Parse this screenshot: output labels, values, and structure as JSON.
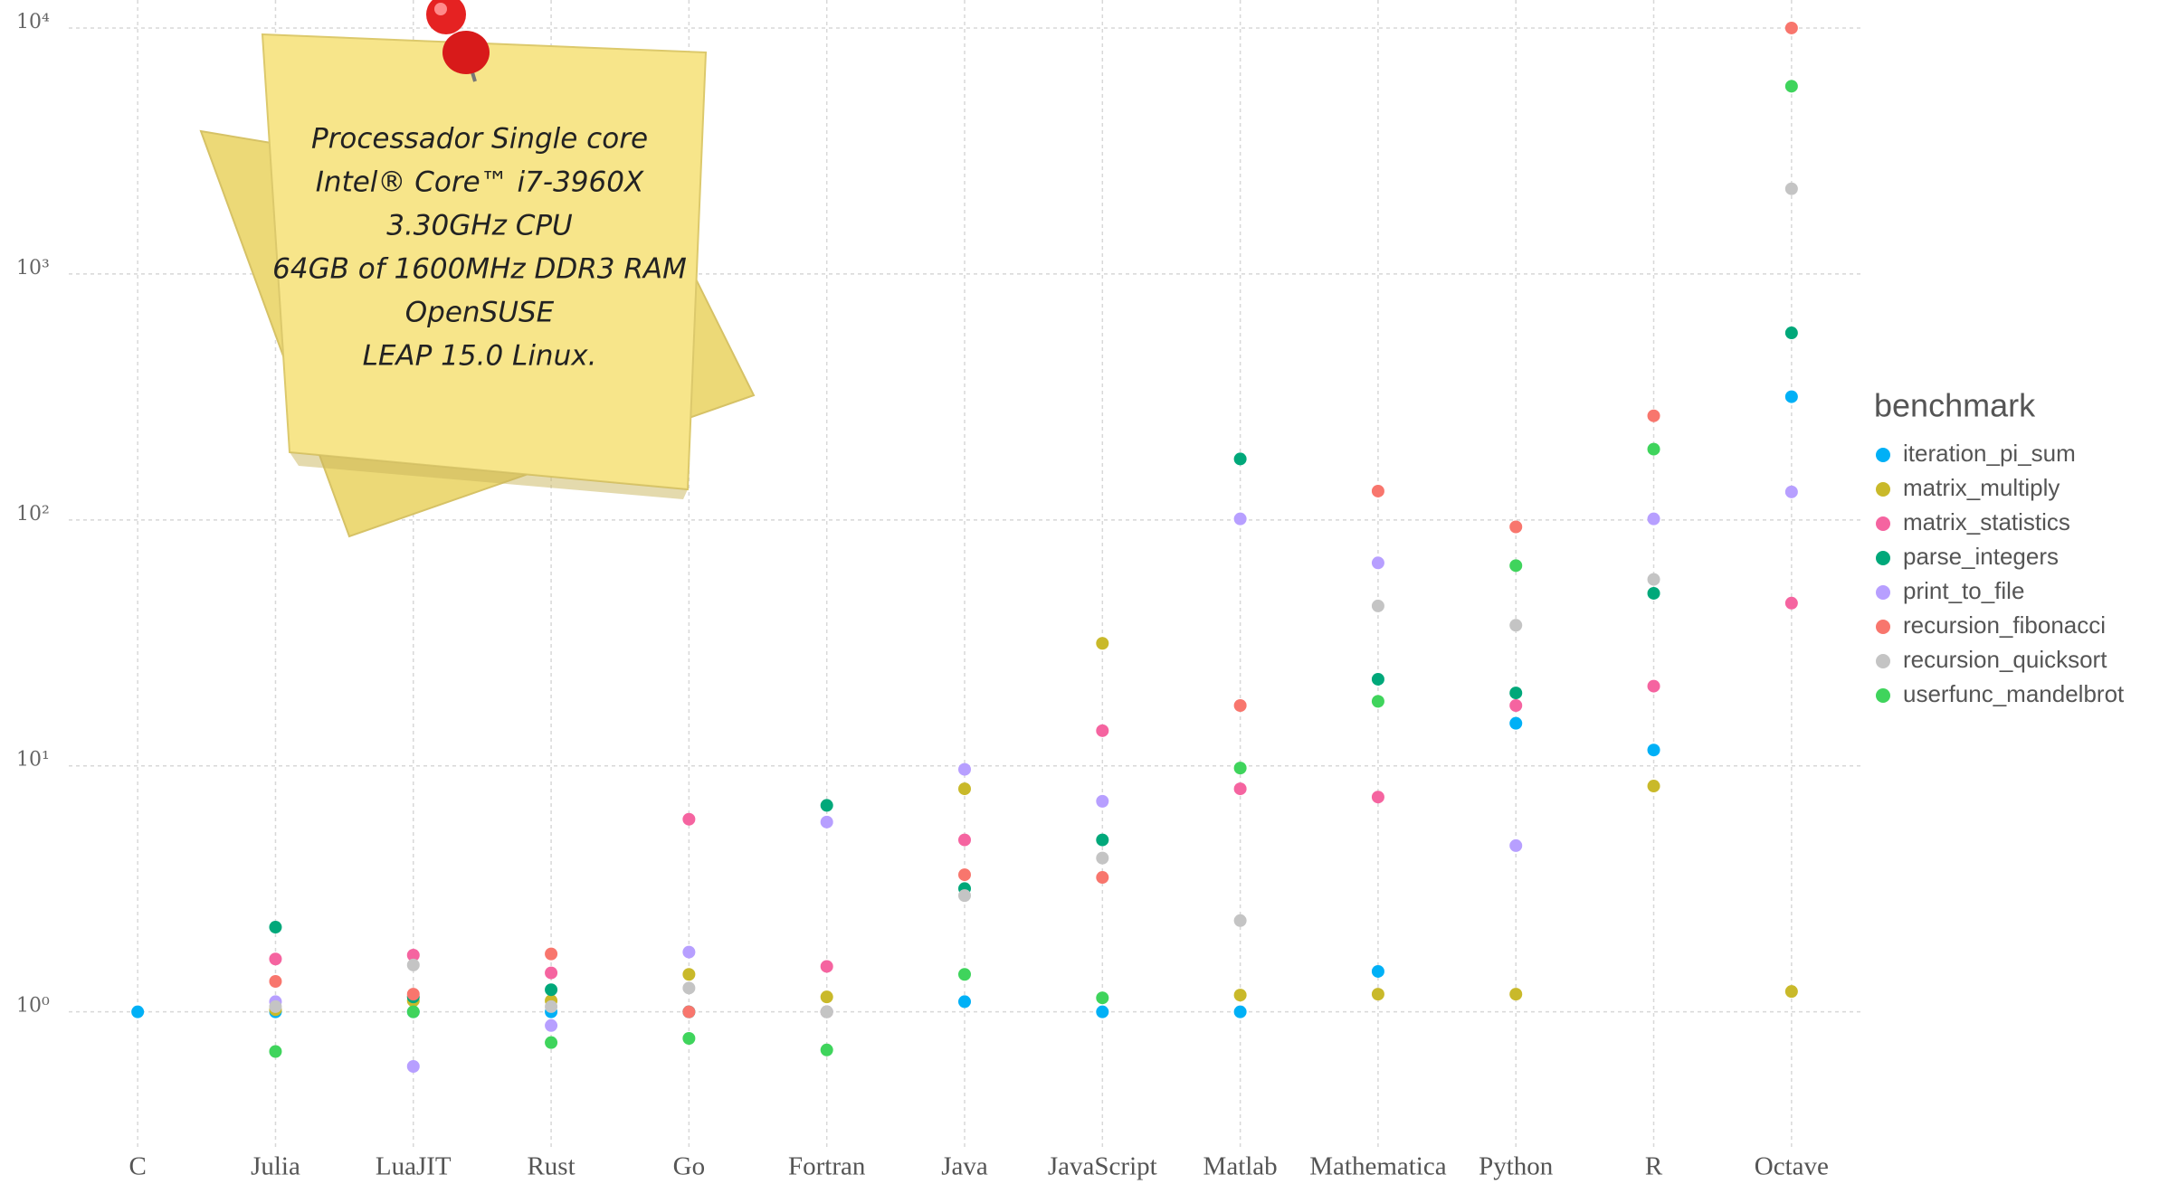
{
  "chart_data": {
    "type": "scatter",
    "log_y": true,
    "grid": true,
    "legend_position": "right",
    "legend_title": "benchmark",
    "annotations": [
      "Processador Single core",
      "Intel® Core™ i7-3960X",
      "3.30GHz CPU",
      "64GB of 1600MHz  DDR3 RAM",
      "OpenSUSE",
      "LEAP 15.0 Linux."
    ],
    "categories": [
      "C",
      "Julia",
      "LuaJIT",
      "Rust",
      "Go",
      "Fortran",
      "Java",
      "JavaScript",
      "Matlab",
      "Mathematica",
      "Python",
      "R",
      "Octave"
    ],
    "ylim": [
      0.28,
      13000
    ],
    "yticks": [
      {
        "value": 1,
        "label": "10⁰"
      },
      {
        "value": 10,
        "label": "10¹"
      },
      {
        "value": 100,
        "label": "10²"
      },
      {
        "value": 1000,
        "label": "10³"
      },
      {
        "value": 10000,
        "label": "10⁴"
      }
    ],
    "series": [
      {
        "name": "iteration_pi_sum",
        "color": "#00b0f6",
        "values": [
          1.0,
          1.0,
          1.0,
          1.0,
          1.0,
          1.0,
          1.1,
          1.0,
          1.0,
          1.46,
          14.9,
          11.6,
          317
        ]
      },
      {
        "name": "matrix_multiply",
        "color": "#c9b92a",
        "values": [
          null,
          1.02,
          1.11,
          1.11,
          1.42,
          1.15,
          8.07,
          31.5,
          1.17,
          1.18,
          1.18,
          8.28,
          1.21
        ]
      },
      {
        "name": "matrix_statistics",
        "color": "#f564a0",
        "values": [
          null,
          1.64,
          1.7,
          1.44,
          6.07,
          1.53,
          5.0,
          13.9,
          8.07,
          7.47,
          17.6,
          21.1,
          45.9
        ]
      },
      {
        "name": "parse_integers",
        "color": "#00a87a",
        "values": [
          null,
          2.21,
          1.15,
          1.23,
          1.0,
          6.91,
          3.17,
          5.0,
          177,
          22.5,
          19.8,
          50.3,
          576
        ]
      },
      {
        "name": "print_to_file",
        "color": "#b79fff",
        "values": [
          null,
          1.1,
          0.6,
          0.88,
          1.75,
          5.91,
          9.68,
          7.18,
          101,
          66.9,
          4.74,
          101,
          130
        ]
      },
      {
        "name": "recursion_fibonacci",
        "color": "#f8766d",
        "values": [
          null,
          1.33,
          1.18,
          1.72,
          1.0,
          1.0,
          3.61,
          3.52,
          17.6,
          131,
          93.7,
          265,
          10000
        ]
      },
      {
        "name": "recursion_quicksort",
        "color": "#c4c4c4",
        "values": [
          null,
          1.05,
          1.55,
          1.05,
          1.25,
          1.0,
          2.97,
          4.22,
          2.35,
          44.7,
          37.3,
          57.3,
          2220
        ]
      },
      {
        "name": "userfunc_mandelbrot",
        "color": "#3fd45c",
        "values": [
          null,
          0.69,
          1.0,
          0.75,
          0.78,
          0.7,
          1.42,
          1.14,
          9.8,
          18.3,
          65.2,
          194,
          5800
        ]
      }
    ]
  }
}
